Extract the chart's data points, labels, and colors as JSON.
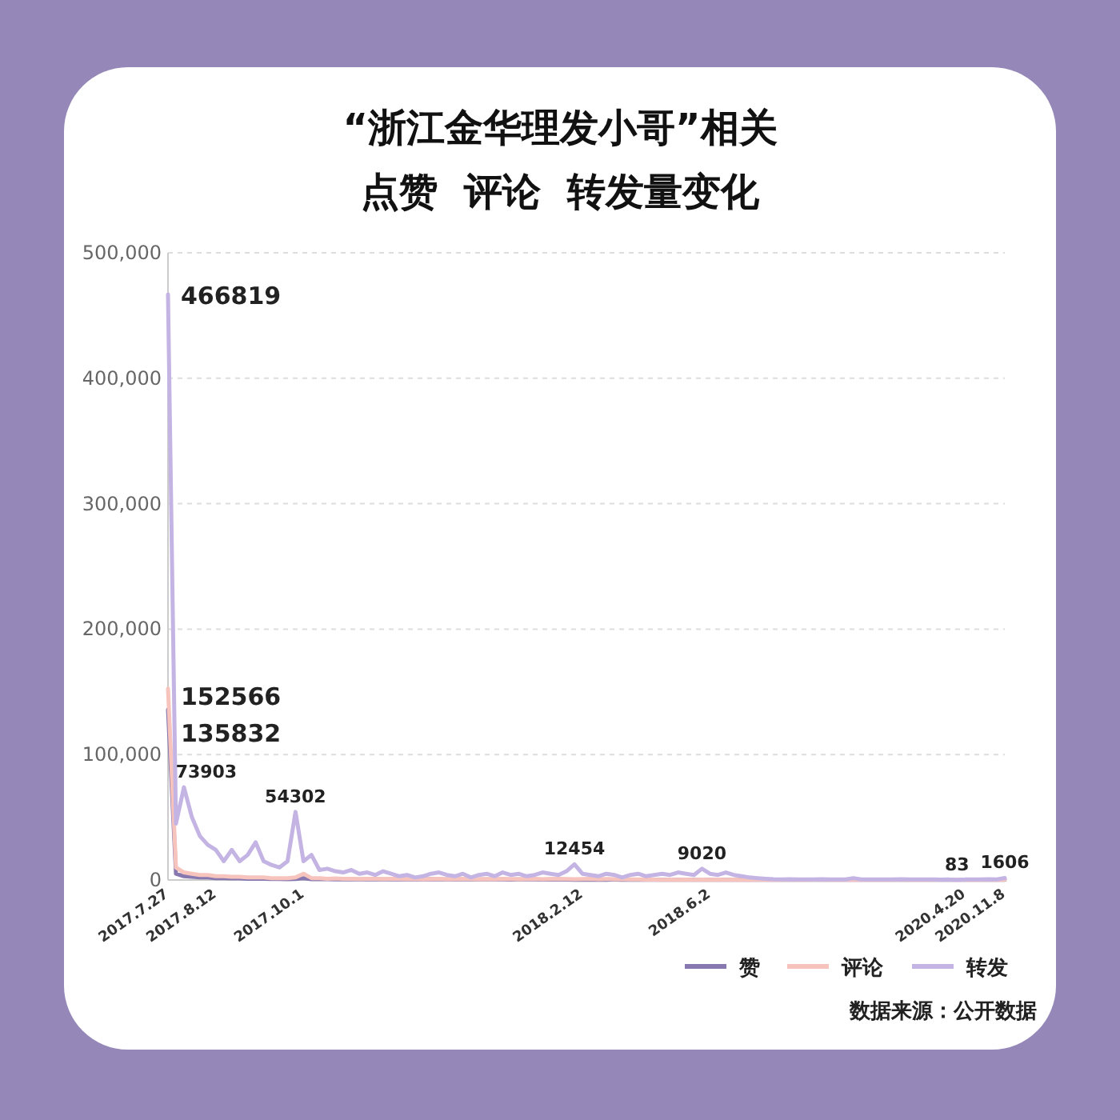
{
  "chart_data": {
    "type": "line",
    "title": "“浙江金华理发小哥”相关",
    "subtitle": "点赞  评论  转发量变化",
    "categories": [
      "2017.7.27",
      null,
      null,
      null,
      null,
      null,
      "2017.8.12",
      null,
      null,
      null,
      null,
      null,
      null,
      null,
      null,
      null,
      null,
      "2017.10.1",
      null,
      null,
      null,
      null,
      null,
      null,
      null,
      null,
      null,
      null,
      null,
      null,
      null,
      null,
      null,
      null,
      null,
      null,
      null,
      null,
      null,
      null,
      null,
      null,
      null,
      null,
      null,
      null,
      null,
      null,
      null,
      null,
      null,
      null,
      "2018.2.12",
      null,
      null,
      null,
      null,
      null,
      null,
      null,
      null,
      null,
      null,
      null,
      null,
      null,
      null,
      null,
      "2018.6.2",
      null,
      null,
      null,
      null,
      null,
      null,
      null,
      null,
      null,
      null,
      null,
      null,
      null,
      null,
      null,
      null,
      null,
      null,
      null,
      null,
      null,
      null,
      null,
      null,
      null,
      null,
      null,
      null,
      null,
      null,
      null,
      "2020.4.20",
      null,
      null,
      null,
      null,
      "2020.11.8"
    ],
    "series": [
      {
        "name": "赞",
        "color": "#8878b0",
        "values": [
          135832,
          5000,
          3000,
          2500,
          2000,
          2000,
          1500,
          1500,
          1200,
          1200,
          1000,
          1000,
          900,
          800,
          800,
          700,
          800,
          1500,
          700,
          600,
          600,
          500,
          600,
          500,
          400,
          500,
          600,
          500,
          400,
          500,
          500,
          400,
          500,
          600,
          500,
          400,
          500,
          400,
          500,
          400,
          400,
          500,
          400,
          300,
          400,
          500,
          400,
          300,
          400,
          300,
          300,
          200,
          300,
          200,
          300,
          200,
          300,
          200,
          300,
          200,
          200,
          150,
          200,
          150,
          200,
          150,
          200,
          150,
          200,
          150,
          150,
          100,
          150,
          100,
          150,
          100,
          150,
          100,
          150,
          100,
          100,
          150,
          100,
          150,
          100,
          150,
          100,
          150,
          100,
          150,
          100,
          150,
          100,
          150,
          100,
          150,
          100,
          150,
          100,
          150,
          100,
          150,
          100,
          150,
          100,
          150
        ],
        "value_labels": [
          "135832",
          null,
          null,
          null,
          null,
          null,
          null,
          null,
          null,
          null,
          null,
          null,
          null,
          null,
          null,
          null,
          null,
          null,
          null,
          null,
          null,
          null,
          null,
          null,
          null,
          null,
          null,
          null,
          null,
          null,
          null,
          null,
          null,
          null,
          null,
          null,
          null,
          null,
          null,
          null,
          null,
          null,
          null,
          null,
          null,
          null,
          null,
          null,
          null,
          null,
          null,
          null,
          null,
          null,
          null,
          null,
          null,
          null,
          null,
          null,
          null,
          null,
          null,
          null,
          null,
          null,
          null,
          null,
          null,
          null,
          null,
          null,
          null,
          null,
          null,
          null,
          null,
          null,
          null,
          null,
          null,
          null,
          null,
          null,
          null,
          null,
          null,
          null,
          null,
          null,
          null,
          null,
          null,
          null,
          null,
          null,
          null,
          null,
          null,
          null,
          null,
          null,
          null,
          null,
          null,
          null
        ]
      },
      {
        "name": "评论",
        "color": "#f6c4bc",
        "values": [
          152566,
          10000,
          6000,
          5000,
          4000,
          4000,
          3000,
          3000,
          2500,
          2500,
          2000,
          2000,
          2000,
          1500,
          1500,
          1500,
          2000,
          5000,
          1500,
          1500,
          1000,
          1200,
          900,
          1000,
          800,
          1000,
          900,
          800,
          1000,
          900,
          800,
          900,
          700,
          800,
          900,
          700,
          800,
          900,
          800,
          700,
          800,
          700,
          900,
          800,
          700,
          800,
          900,
          700,
          800,
          900,
          800,
          700,
          800,
          900,
          700,
          800,
          700,
          600,
          500,
          400,
          300,
          300,
          200,
          300,
          200,
          300,
          200,
          300,
          200,
          300,
          200,
          300,
          200,
          300,
          200,
          300,
          200,
          300,
          200,
          300,
          200,
          300,
          200,
          300,
          200,
          300,
          200,
          300,
          200,
          300,
          200,
          300,
          200,
          300,
          200,
          300,
          200,
          300,
          200,
          300,
          200,
          300,
          200,
          300,
          200,
          300
        ],
        "value_labels": [
          "152566",
          null,
          null,
          null,
          null,
          null,
          null,
          null,
          null,
          null,
          null,
          null,
          null,
          null,
          null,
          null,
          null,
          null,
          null,
          null,
          null,
          null,
          null,
          null,
          null,
          null,
          null,
          null,
          null,
          null,
          null,
          null,
          null,
          null,
          null,
          null,
          null,
          null,
          null,
          null,
          null,
          null,
          null,
          null,
          null,
          null,
          null,
          null,
          null,
          null,
          null,
          null,
          null,
          null,
          null,
          null,
          null,
          null,
          null,
          null,
          null,
          null,
          null,
          null,
          null,
          null,
          null,
          null,
          null,
          null,
          null,
          null,
          null,
          null,
          null,
          null,
          null,
          null,
          null,
          null,
          null,
          null,
          null,
          null,
          null,
          null,
          null,
          null,
          null,
          null,
          null,
          null,
          null,
          null,
          null,
          null,
          null,
          null,
          null,
          null,
          null,
          null,
          null,
          null,
          null,
          null
        ]
      },
      {
        "name": "转发",
        "color": "#c4b4e4",
        "values": [
          466819,
          45000,
          73903,
          50000,
          35000,
          28000,
          24000,
          15000,
          24000,
          15000,
          20000,
          30000,
          15000,
          12000,
          10000,
          15000,
          54302,
          15000,
          20000,
          8000,
          9000,
          7000,
          6000,
          8000,
          5000,
          6000,
          4000,
          7000,
          5000,
          3000,
          4000,
          2000,
          3000,
          5000,
          6000,
          4000,
          3000,
          5000,
          2000,
          4000,
          5000,
          3000,
          6000,
          4000,
          5000,
          3000,
          4000,
          6000,
          5000,
          4000,
          7000,
          12454,
          5000,
          4000,
          3000,
          5000,
          4000,
          2000,
          4000,
          5000,
          3000,
          4000,
          5000,
          4000,
          6000,
          5000,
          4000,
          9020,
          5000,
          4000,
          6000,
          4000,
          3000,
          2000,
          1500,
          1000,
          600,
          500,
          600,
          500,
          400,
          500,
          600,
          500,
          400,
          500,
          1500,
          500,
          400,
          500,
          400,
          500,
          600,
          500,
          400,
          500,
          400,
          300,
          400,
          83,
          400,
          500,
          400,
          600,
          500,
          1606
        ],
        "value_labels": [
          "466819",
          null,
          "73903",
          null,
          null,
          null,
          null,
          null,
          null,
          null,
          null,
          null,
          null,
          null,
          null,
          null,
          "54302",
          null,
          null,
          null,
          null,
          null,
          null,
          null,
          null,
          null,
          null,
          null,
          null,
          null,
          null,
          null,
          null,
          null,
          null,
          null,
          null,
          null,
          null,
          null,
          null,
          null,
          null,
          null,
          null,
          null,
          null,
          null,
          null,
          null,
          null,
          "12454",
          null,
          null,
          null,
          null,
          null,
          null,
          null,
          null,
          null,
          null,
          null,
          null,
          null,
          null,
          null,
          "9020",
          null,
          null,
          null,
          null,
          null,
          null,
          null,
          null,
          null,
          null,
          null,
          null,
          null,
          null,
          null,
          null,
          null,
          null,
          null,
          null,
          null,
          null,
          null,
          null,
          null,
          null,
          null,
          null,
          null,
          null,
          null,
          "83",
          null,
          null,
          null,
          null,
          null,
          "1606"
        ]
      }
    ],
    "ylim": [
      0,
      500000
    ],
    "yticks": [
      0,
      {
        "value": 100000,
        "label": "100,000"
      },
      {
        "value": 200000,
        "label": "200,000"
      },
      {
        "value": 300000,
        "label": "300,000"
      },
      {
        "value": 400000,
        "label": "400,000"
      },
      {
        "value": 500000,
        "label": "500,000"
      }
    ],
    "grid": "y",
    "legend": "bottom right",
    "marker": "none",
    "line_style": "solid",
    "annotations": [
      "数据来源：公开数据"
    ]
  }
}
